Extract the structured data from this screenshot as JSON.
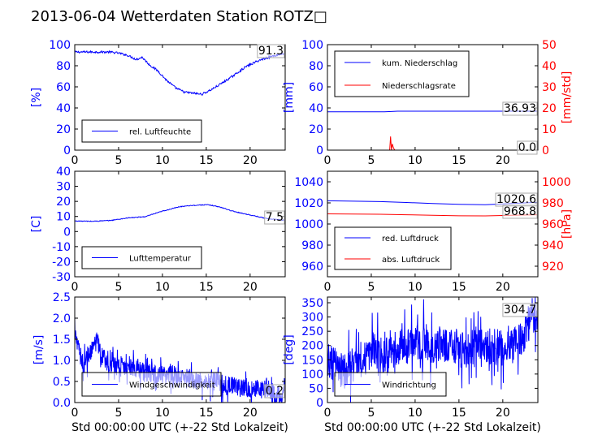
{
  "figure_title": "2013-06-04 Wetterdaten Station ROTZ□",
  "colors": {
    "blue": "#0000ff",
    "red": "#ff0000",
    "black": "#000000"
  },
  "chart_data": [
    {
      "id": "humidity",
      "type": "line",
      "xlim": [
        0,
        24
      ],
      "ylim": [
        0,
        100
      ],
      "xticks": [
        0,
        5,
        10,
        15,
        20
      ],
      "yticks": [
        0,
        20,
        40,
        60,
        80,
        100
      ],
      "ylabel": "[%]",
      "xlabel": "",
      "legend": [
        "rel. Luftfeuchte"
      ],
      "legend_position": "lower-left",
      "current_value": "91.3",
      "series": [
        {
          "name": "rel. Luftfeuchte",
          "color": "#0000ff",
          "noise": 2,
          "x": [
            0,
            2,
            4,
            5,
            6,
            7,
            7.7,
            8.5,
            9.5,
            10.5,
            11.5,
            12.5,
            13.5,
            14.5,
            15.5,
            16.5,
            18,
            19.5,
            21,
            22.5,
            24
          ],
          "y": [
            93,
            93,
            93,
            92,
            90,
            86,
            88,
            81,
            75,
            66,
            59,
            55,
            54,
            53,
            57,
            62,
            70,
            79,
            85,
            89,
            92
          ]
        }
      ]
    },
    {
      "id": "precipitation",
      "type": "line",
      "xlim": [
        0,
        24
      ],
      "ylim": [
        0,
        100
      ],
      "y2lim": [
        0,
        50
      ],
      "xticks": [
        0,
        5,
        10,
        15,
        20
      ],
      "yticks": [
        0,
        20,
        40,
        60,
        80,
        100
      ],
      "y2ticks": [
        0,
        10,
        20,
        30,
        40,
        50
      ],
      "ylabel": "[mm]",
      "y2label": "[mm/std]",
      "xlabel": "",
      "legend": [
        "kum. Niederschlag",
        "Niederschlagsrate"
      ],
      "legend_position": "upper-left",
      "current_values": [
        "36.93",
        "0.0"
      ],
      "series": [
        {
          "name": "kum. Niederschlag",
          "color": "#0000ff",
          "axis": "left",
          "x": [
            0,
            6.5,
            7.3,
            8,
            24
          ],
          "y": [
            36.3,
            36.3,
            36.6,
            36.93,
            36.93
          ]
        },
        {
          "name": "Niederschlagsrate",
          "color": "#ff0000",
          "axis": "right",
          "x": [
            0,
            7.1,
            7.2,
            7.3,
            7.4,
            7.5,
            7.6,
            7.7,
            24
          ],
          "y": [
            0,
            0,
            6.5,
            0,
            3,
            1.5,
            0.5,
            0,
            0
          ]
        }
      ]
    },
    {
      "id": "temperature",
      "type": "line",
      "xlim": [
        0,
        24
      ],
      "ylim": [
        -30,
        40
      ],
      "xticks": [
        0,
        5,
        10,
        15,
        20
      ],
      "yticks": [
        -30,
        -20,
        -10,
        0,
        10,
        20,
        30,
        40
      ],
      "ylabel": "[C]",
      "xlabel": "",
      "legend": [
        "Lufttemperatur"
      ],
      "legend_position": "lower-left",
      "current_value": "7.5",
      "series": [
        {
          "name": "Lufttemperatur",
          "color": "#0000ff",
          "noise": 0.5,
          "x": [
            0,
            2,
            4,
            6,
            8,
            10,
            12,
            13,
            14,
            15,
            16,
            17,
            18,
            20,
            22,
            24
          ],
          "y": [
            7,
            6.8,
            7.3,
            9,
            9.8,
            13.5,
            16.5,
            17.2,
            17.5,
            17.8,
            17,
            15.5,
            13.5,
            11,
            8.5,
            7.5
          ]
        }
      ]
    },
    {
      "id": "pressure",
      "type": "line",
      "xlim": [
        0,
        24
      ],
      "ylim": [
        950,
        1050
      ],
      "y2lim": [
        910,
        1010
      ],
      "xticks": [
        0,
        5,
        10,
        15,
        20
      ],
      "yticks": [
        960,
        980,
        1000,
        1020,
        1040
      ],
      "y2ticks": [
        920,
        940,
        960,
        980,
        1000
      ],
      "ylabel": "",
      "y2label": "[hPa]",
      "xlabel": "",
      "legend": [
        "red. Luftdruck",
        "abs. Luftdruck"
      ],
      "legend_position": "lower-left",
      "current_values": [
        "1020.6",
        "968.8"
      ],
      "series": [
        {
          "name": "red. Luftdruck",
          "color": "#0000ff",
          "axis": "left",
          "x": [
            0,
            3,
            6,
            9,
            12,
            15,
            18,
            21,
            24
          ],
          "y": [
            1022,
            1021.6,
            1021.2,
            1020.4,
            1019.5,
            1018.6,
            1018.3,
            1019.5,
            1020.6
          ]
        },
        {
          "name": "abs. Luftdruck",
          "color": "#ff0000",
          "axis": "right",
          "x": [
            0,
            3,
            6,
            9,
            12,
            15,
            18,
            21,
            24
          ],
          "y": [
            969.6,
            969.4,
            969.2,
            968.8,
            968.3,
            967.8,
            967.7,
            968.2,
            968.8
          ]
        }
      ]
    },
    {
      "id": "windspeed",
      "type": "line",
      "xlim": [
        0,
        24
      ],
      "ylim": [
        0,
        2.5
      ],
      "xticks": [
        0,
        5,
        10,
        15,
        20
      ],
      "yticks": [
        0,
        0.5,
        1,
        1.5,
        2,
        2.5
      ],
      "ylabel": "[m/s]",
      "xlabel": "Std 00:00:00 UTC (+-22 Std Lokalzeit)",
      "legend": [
        "Windgeschwindigkeit"
      ],
      "legend_position": "lower-left",
      "current_value": "0.2",
      "series": [
        {
          "name": "Windgeschwindigkeit",
          "color": "#0000ff",
          "noise": 0.45,
          "spiky": true,
          "x": [
            0,
            0.2,
            1,
            2,
            2.5,
            3,
            4,
            5,
            6,
            7,
            8,
            9,
            10,
            11,
            12,
            13,
            14,
            15,
            16,
            17,
            18,
            19,
            20,
            21,
            22,
            23,
            24
          ],
          "y": [
            1.9,
            1.4,
            0.9,
            1.3,
            1.5,
            1.1,
            0.9,
            0.8,
            0.9,
            0.8,
            0.7,
            0.7,
            0.65,
            0.7,
            0.55,
            0.6,
            0.5,
            0.5,
            0.5,
            0.45,
            0.4,
            0.35,
            0.3,
            0.3,
            0.35,
            0.2,
            0.2
          ]
        }
      ]
    },
    {
      "id": "winddir",
      "type": "line",
      "xlim": [
        0,
        24
      ],
      "ylim": [
        0,
        370
      ],
      "xticks": [
        0,
        5,
        10,
        15,
        20
      ],
      "yticks": [
        0,
        50,
        100,
        150,
        200,
        250,
        300,
        350
      ],
      "ylabel": "[deg]",
      "xlabel": "Std 00:00:00 UTC (+-22 Std Lokalzeit)",
      "legend": [
        "Windrichtung"
      ],
      "legend_position": "lower-left",
      "current_value": "304.7",
      "series": [
        {
          "name": "Windrichtung",
          "color": "#0000ff",
          "noise": 130,
          "spiky": true,
          "x": [
            0,
            1,
            2,
            3,
            4,
            5,
            6,
            7,
            8,
            9,
            10,
            11,
            12,
            13,
            14,
            15,
            16,
            17,
            18,
            19,
            20,
            21,
            22,
            23,
            24
          ],
          "y": [
            150,
            120,
            110,
            130,
            150,
            180,
            170,
            160,
            200,
            190,
            210,
            220,
            200,
            210,
            200,
            190,
            180,
            200,
            190,
            200,
            180,
            200,
            220,
            270,
            300
          ]
        }
      ]
    }
  ]
}
